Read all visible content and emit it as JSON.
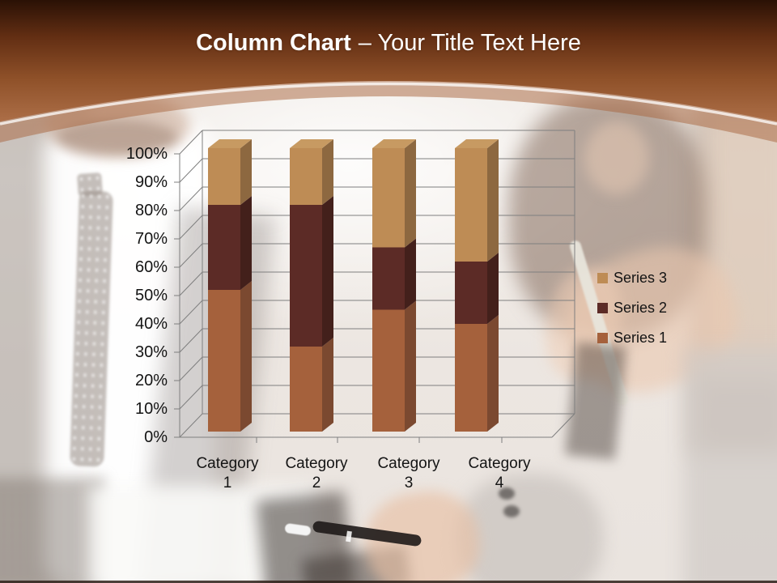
{
  "slide": {
    "title": {
      "bold": "Column Chart",
      "rest": "– Your Title Text Here"
    }
  },
  "header": {
    "color_top": "#2A1105",
    "color_mid": "#8F5129",
    "color_bottom": "#AC6E47",
    "band_color": "#A8643C",
    "title_color": "#FFFFFF"
  },
  "chart_data": {
    "type": "bar",
    "subtype": "3d-100%-stacked-column",
    "title": "",
    "xlabel": "",
    "ylabel": "",
    "categories": [
      "Category 1",
      "Category 2",
      "Category 3",
      "Category 4"
    ],
    "series": [
      {
        "name": "Series 1",
        "values": [
          50,
          30,
          43,
          38
        ],
        "color": "#A5613C",
        "color_side": "#7B4930",
        "color_top": "#B4764F"
      },
      {
        "name": "Series 2",
        "values": [
          30,
          50,
          22,
          22
        ],
        "color": "#5C2B26",
        "color_side": "#43201B",
        "color_top": "#6B3A33"
      },
      {
        "name": "Series 3",
        "values": [
          20,
          20,
          35,
          40
        ],
        "color": "#BE8C55",
        "color_side": "#8D6840",
        "color_top": "#C79A62"
      }
    ],
    "y_ticks": [
      "100%",
      "90%",
      "80%",
      "70%",
      "60%",
      "50%",
      "40%",
      "30%",
      "20%",
      "10%",
      "0%"
    ],
    "ylim": [
      0,
      100
    ],
    "grid": true,
    "gridline_color": "#7F7F7F",
    "label_color": "#141414",
    "legend": {
      "position": "right",
      "entries": [
        "Series 3",
        "Series 2",
        "Series 1"
      ]
    }
  }
}
